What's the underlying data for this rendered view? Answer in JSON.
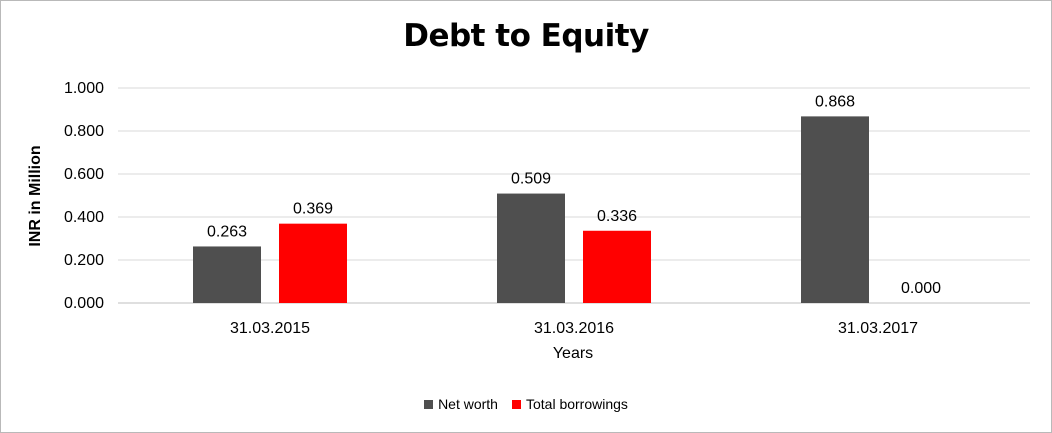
{
  "chart_data": {
    "type": "bar",
    "title": "Debt to Equity",
    "xlabel": "Years",
    "ylabel": "INR in Million",
    "categories": [
      "31.03.2015",
      "31.03.2016",
      "31.03.2017"
    ],
    "series": [
      {
        "name": "Net worth",
        "values": [
          0.263,
          0.509,
          0.868
        ],
        "color": "#4f4f4f"
      },
      {
        "name": "Total borrowings",
        "values": [
          0.369,
          0.336,
          0.0
        ],
        "color": "#ff0000"
      }
    ],
    "ylim": [
      0,
      1
    ],
    "yticks": [
      "0.000",
      "0.200",
      "0.400",
      "0.600",
      "0.800",
      "1.000"
    ],
    "value_decimals": 3,
    "grid": true,
    "legend_position": "bottom"
  }
}
